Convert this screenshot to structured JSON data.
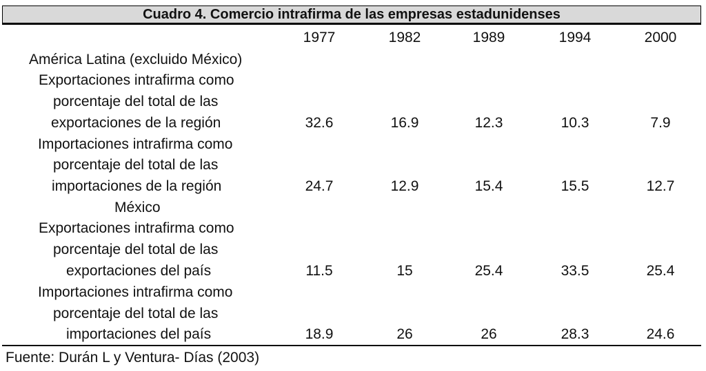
{
  "chart_data": {
    "type": "table",
    "title": "Cuadro 4. Comercio intrafirma de las empresas estadunidenses",
    "columns": [
      "1977",
      "1982",
      "1989",
      "1994",
      "2000"
    ],
    "sections": [
      {
        "name": "América Latina (excluido México)",
        "rows": [
          {
            "label": [
              "Exportaciones intrafirma como",
              "porcentaje del total de las",
              "exportaciones de la región"
            ],
            "values": [
              "32.6",
              "16.9",
              "12.3",
              "10.3",
              "7.9"
            ]
          },
          {
            "label": [
              "Importaciones intrafirma como",
              "porcentaje del total de las",
              "importaciones de la región"
            ],
            "values": [
              "24.7",
              "12.9",
              "15.4",
              "15.5",
              "12.7"
            ]
          }
        ]
      },
      {
        "name": "México",
        "rows": [
          {
            "label": [
              "Exportaciones intrafirma como",
              "porcentaje del total de las",
              "exportaciones del país"
            ],
            "values": [
              "11.5",
              "15",
              "25.4",
              "33.5",
              "25.4"
            ]
          },
          {
            "label": [
              "Importaciones intrafirma como",
              "porcentaje del total de las",
              "importaciones del país"
            ],
            "values": [
              "18.9",
              "26",
              "26",
              "28.3",
              "24.6"
            ]
          }
        ]
      }
    ],
    "source": "Fuente:  Durán L y Ventura- Días (2003)"
  }
}
